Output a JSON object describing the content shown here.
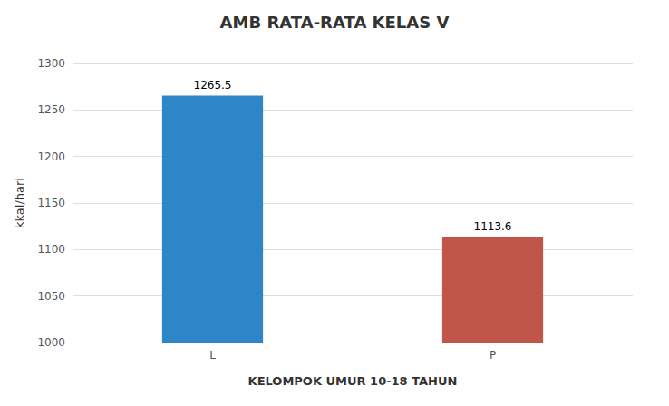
{
  "chart_data": {
    "type": "bar",
    "title": "AMB RATA-RATA KELAS V",
    "categories": [
      "L",
      "P"
    ],
    "values": [
      1265.5,
      1113.6
    ],
    "colors": [
      "#2e86c8",
      "#c0554a"
    ],
    "xlabel": "KELOMPOK UMUR 10-18 TAHUN",
    "ylabel": "kkal/hari",
    "ylim": [
      1000,
      1300
    ],
    "yticks": [
      1000,
      1050,
      1100,
      1150,
      1200,
      1250,
      1300
    ],
    "grid": true,
    "data_labels": true
  }
}
